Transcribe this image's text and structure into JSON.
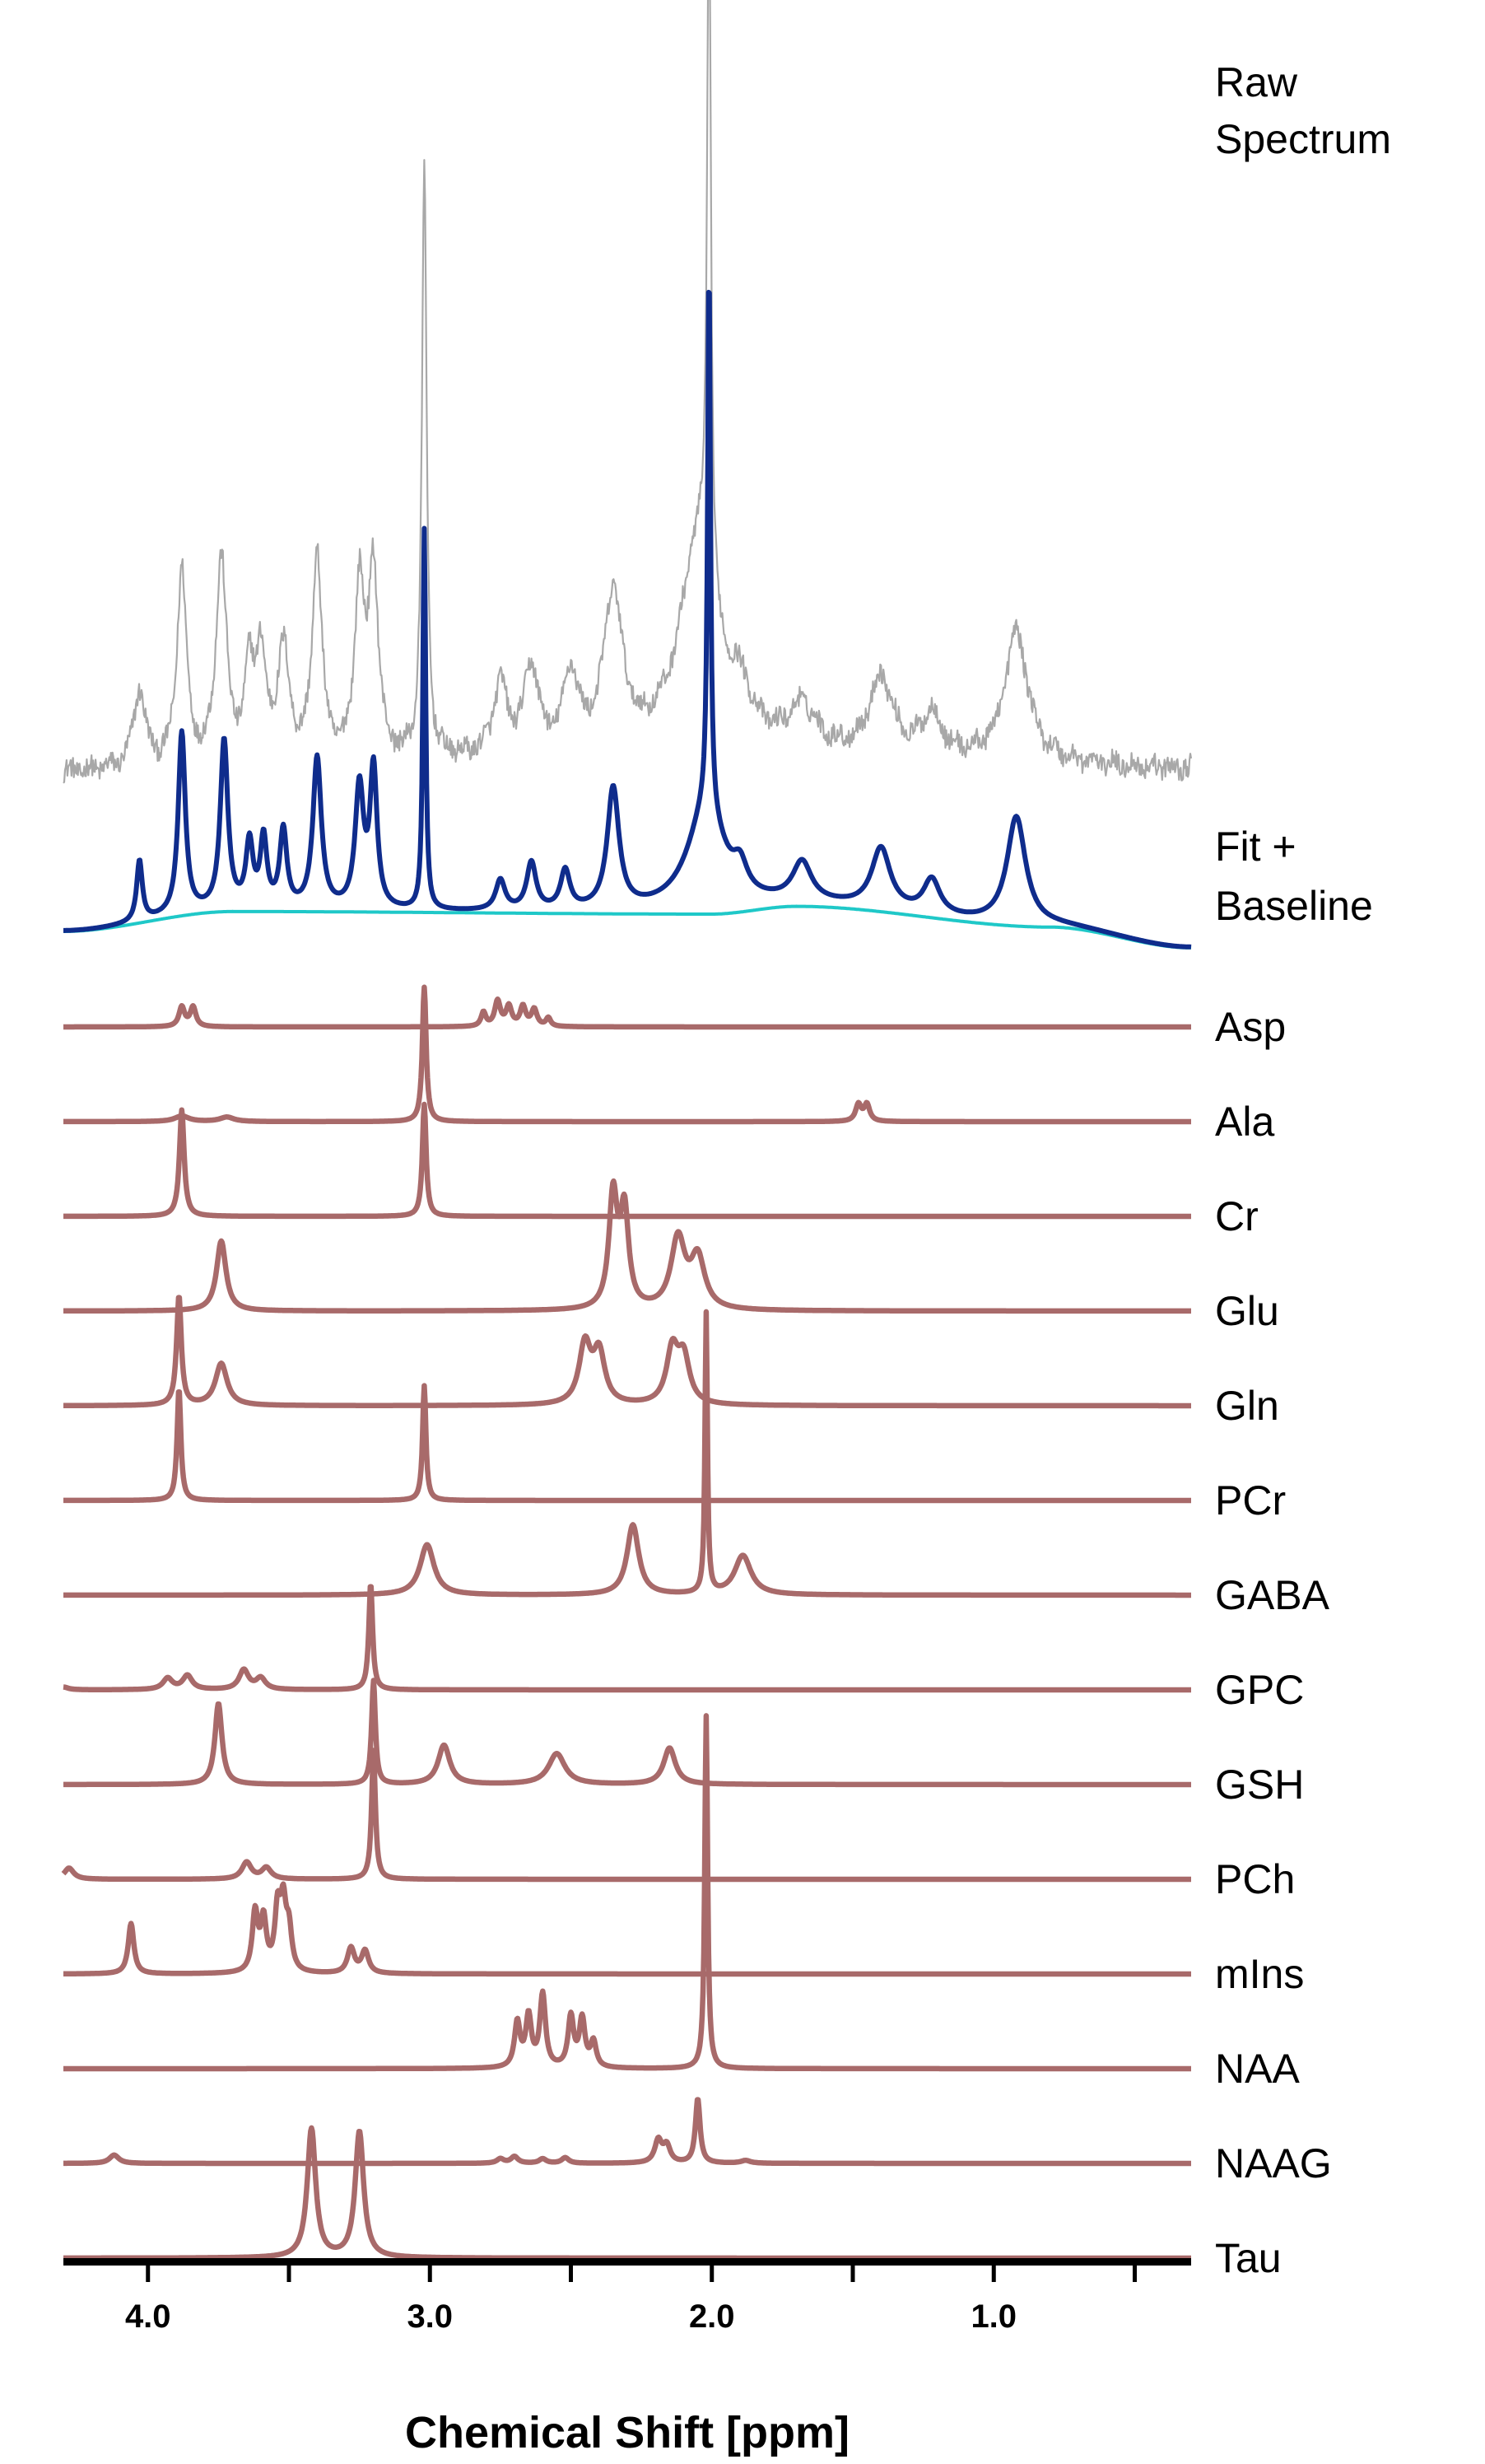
{
  "chart_data": {
    "type": "line",
    "title": "",
    "xlabel": "Chemical Shift [ppm]",
    "ylabel": "",
    "x_reversed": true,
    "xlim": [
      4.3,
      0.3
    ],
    "x_ticks": [
      4.0,
      3.0,
      2.0,
      1.0
    ],
    "x_tick_labels": [
      "4.0",
      "3.0",
      "2.0",
      "1.0"
    ],
    "x_minor_ticks": [
      3.5,
      2.5,
      1.5,
      0.5
    ],
    "grid": false,
    "colors": {
      "raw": "#a8a8a8",
      "fit": "#0f2c8c",
      "baseline": "#1fc8c8",
      "metabolite": "#a86a6a",
      "axis": "#000000"
    },
    "annotations": {
      "raw_label": "Raw Spectrum",
      "fit_label": "Fit + Baseline"
    },
    "raw_spectrum": {
      "name": "Raw Spectrum",
      "noise": 0.12,
      "peaks": [
        [
          4.03,
          0.9,
          0.025
        ],
        [
          3.88,
          2.3,
          0.02
        ],
        [
          3.74,
          2.4,
          0.022
        ],
        [
          3.64,
          1.0,
          0.02
        ],
        [
          3.6,
          1.2,
          0.02
        ],
        [
          3.52,
          1.3,
          0.025
        ],
        [
          3.4,
          2.4,
          0.02
        ],
        [
          3.25,
          2.0,
          0.02
        ],
        [
          3.2,
          2.2,
          0.02
        ],
        [
          3.02,
          6.8,
          0.01
        ],
        [
          2.75,
          0.8,
          0.03
        ],
        [
          2.64,
          1.0,
          0.03
        ],
        [
          2.5,
          0.9,
          0.03
        ],
        [
          2.35,
          1.8,
          0.04
        ],
        [
          2.05,
          2.4,
          0.08
        ],
        [
          2.01,
          8.2,
          0.008
        ],
        [
          1.9,
          0.5,
          0.05
        ],
        [
          1.68,
          0.5,
          0.06
        ],
        [
          1.4,
          0.9,
          0.05
        ],
        [
          1.22,
          0.5,
          0.04
        ],
        [
          0.92,
          1.5,
          0.05
        ]
      ]
    },
    "fit": {
      "name": "Fit",
      "peaks": [
        [
          4.03,
          0.7,
          0.012
        ],
        [
          3.88,
          2.1,
          0.015
        ],
        [
          3.73,
          1.95,
          0.016
        ],
        [
          3.64,
          0.75,
          0.015
        ],
        [
          3.59,
          0.8,
          0.014
        ],
        [
          3.52,
          0.9,
          0.015
        ],
        [
          3.4,
          1.75,
          0.018
        ],
        [
          3.25,
          1.4,
          0.018
        ],
        [
          3.2,
          1.6,
          0.015
        ],
        [
          3.02,
          4.4,
          0.006
        ],
        [
          2.75,
          0.35,
          0.02
        ],
        [
          2.64,
          0.55,
          0.02
        ],
        [
          2.52,
          0.45,
          0.02
        ],
        [
          2.35,
          1.4,
          0.025
        ],
        [
          2.02,
          1.2,
          0.08
        ],
        [
          2.01,
          6.3,
          0.006
        ],
        [
          1.9,
          0.3,
          0.03
        ],
        [
          1.68,
          0.45,
          0.04
        ],
        [
          1.4,
          0.7,
          0.04
        ],
        [
          1.22,
          0.4,
          0.035
        ],
        [
          0.92,
          1.25,
          0.04
        ]
      ]
    },
    "baseline": {
      "name": "Baseline",
      "points": [
        [
          4.3,
          -0.2
        ],
        [
          3.7,
          0.03
        ],
        [
          2.0,
          0.0
        ],
        [
          1.7,
          0.09
        ],
        [
          0.8,
          -0.15
        ],
        [
          0.3,
          -0.39
        ]
      ]
    },
    "metabolites": [
      {
        "name": "Asp",
        "scale": 1.0,
        "peaks": [
          [
            3.88,
            0.35,
            0.012
          ],
          [
            3.84,
            0.35,
            0.012
          ],
          [
            2.81,
            0.25,
            0.01
          ],
          [
            2.76,
            0.45,
            0.012
          ],
          [
            2.72,
            0.35,
            0.012
          ],
          [
            2.67,
            0.35,
            0.012
          ],
          [
            2.63,
            0.3,
            0.012
          ],
          [
            2.58,
            0.15,
            0.01
          ]
        ]
      },
      {
        "name": "Ala",
        "scale": 1.0,
        "peaks": [
          [
            3.88,
            0.1,
            0.03
          ],
          [
            3.72,
            0.08,
            0.03
          ],
          [
            3.02,
            2.4,
            0.008
          ],
          [
            1.48,
            0.3,
            0.012
          ],
          [
            1.45,
            0.3,
            0.012
          ]
        ]
      },
      {
        "name": "Cr",
        "scale": 1.0,
        "peaks": [
          [
            3.88,
            1.9,
            0.01
          ],
          [
            3.02,
            2.0,
            0.008
          ]
        ]
      },
      {
        "name": "Glu",
        "scale": 1.0,
        "peaks": [
          [
            3.74,
            1.25,
            0.02
          ],
          [
            2.35,
            2.0,
            0.018
          ],
          [
            2.31,
            1.7,
            0.018
          ],
          [
            2.12,
            1.25,
            0.03
          ],
          [
            2.05,
            0.9,
            0.03
          ]
        ]
      },
      {
        "name": "Gln",
        "scale": 1.0,
        "peaks": [
          [
            3.89,
            1.95,
            0.01
          ],
          [
            3.74,
            0.75,
            0.025
          ],
          [
            2.45,
            1.05,
            0.025
          ],
          [
            2.4,
            0.9,
            0.025
          ],
          [
            2.14,
            0.95,
            0.025
          ],
          [
            2.1,
            0.8,
            0.025
          ]
        ]
      },
      {
        "name": "PCr",
        "scale": 1.0,
        "peaks": [
          [
            3.89,
            2.0,
            0.008
          ],
          [
            3.02,
            2.05,
            0.007
          ]
        ]
      },
      {
        "name": "GABA",
        "scale": 1.0,
        "peaks": [
          [
            3.01,
            0.9,
            0.03
          ],
          [
            2.28,
            1.25,
            0.025
          ],
          [
            1.89,
            0.7,
            0.035
          ],
          [
            2.02,
            5.0,
            0.005
          ]
        ]
      },
      {
        "name": "GPC",
        "scale": 1.0,
        "peaks": [
          [
            4.3,
            0.05,
            0.02
          ],
          [
            3.93,
            0.2,
            0.02
          ],
          [
            3.86,
            0.25,
            0.02
          ],
          [
            3.66,
            0.35,
            0.02
          ],
          [
            3.6,
            0.2,
            0.02
          ],
          [
            3.21,
            1.9,
            0.008
          ]
        ]
      },
      {
        "name": "GSH",
        "scale": 1.0,
        "peaks": [
          [
            3.75,
            1.45,
            0.015
          ],
          [
            3.2,
            1.85,
            0.008
          ],
          [
            2.95,
            0.7,
            0.025
          ],
          [
            2.55,
            0.55,
            0.035
          ],
          [
            2.15,
            0.65,
            0.025
          ]
        ]
      },
      {
        "name": "PCh",
        "scale": 1.0,
        "peaks": [
          [
            4.28,
            0.2,
            0.02
          ],
          [
            3.65,
            0.3,
            0.02
          ],
          [
            3.58,
            0.2,
            0.02
          ],
          [
            3.2,
            2.3,
            0.008
          ]
        ]
      },
      {
        "name": "mIns",
        "scale": 1.0,
        "peaks": [
          [
            4.06,
            0.9,
            0.012
          ],
          [
            3.62,
            1.05,
            0.012
          ],
          [
            3.59,
            0.9,
            0.012
          ],
          [
            3.54,
            1.05,
            0.012
          ],
          [
            3.52,
            1.1,
            0.012
          ],
          [
            3.5,
            0.7,
            0.012
          ],
          [
            3.28,
            0.45,
            0.015
          ],
          [
            3.23,
            0.4,
            0.015
          ]
        ]
      },
      {
        "name": "NAA",
        "scale": 1.0,
        "peaks": [
          [
            2.02,
            6.3,
            0.006
          ],
          [
            2.69,
            0.8,
            0.012
          ],
          [
            2.65,
            0.9,
            0.012
          ],
          [
            2.6,
            1.3,
            0.012
          ],
          [
            2.5,
            0.9,
            0.012
          ],
          [
            2.46,
            0.85,
            0.012
          ],
          [
            2.42,
            0.45,
            0.012
          ]
        ]
      },
      {
        "name": "NAAG",
        "scale": 1.0,
        "peaks": [
          [
            4.12,
            0.15,
            0.02
          ],
          [
            2.75,
            0.08,
            0.015
          ],
          [
            2.7,
            0.12,
            0.015
          ],
          [
            2.6,
            0.08,
            0.015
          ],
          [
            2.52,
            0.1,
            0.015
          ],
          [
            2.19,
            0.4,
            0.015
          ],
          [
            2.16,
            0.3,
            0.015
          ],
          [
            2.05,
            1.15,
            0.01
          ],
          [
            1.88,
            0.05,
            0.02
          ]
        ]
      },
      {
        "name": "Tau",
        "scale": 1.0,
        "peaks": [
          [
            3.42,
            2.3,
            0.018
          ],
          [
            3.25,
            2.25,
            0.018
          ]
        ]
      }
    ]
  }
}
